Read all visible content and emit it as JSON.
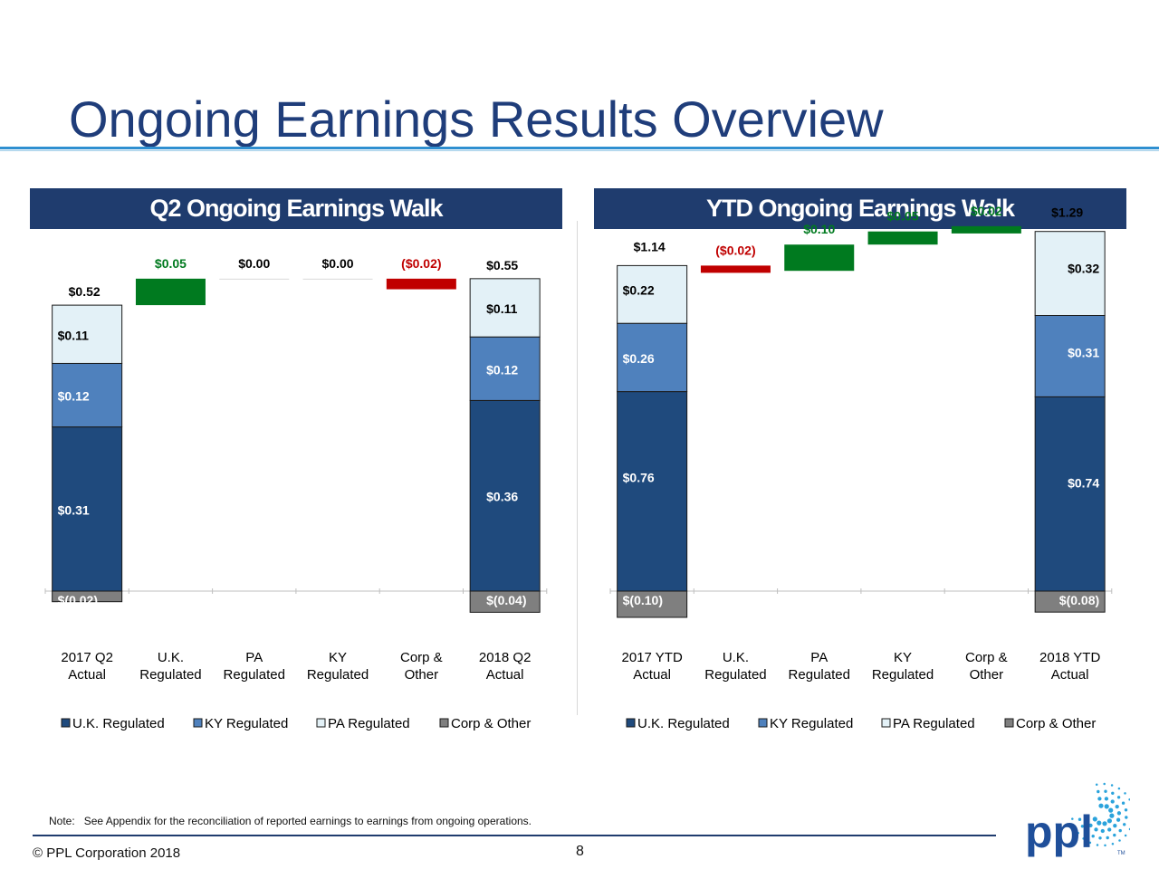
{
  "title": "Ongoing Earnings Results Overview",
  "note_label": "Note:",
  "note_text": "See Appendix for the reconciliation of reported earnings to earnings from ongoing operations.",
  "copyright": "© PPL Corporation 2018",
  "page_number": "8",
  "logo": {
    "icon": "ppl-logo-sunburst",
    "text": "ppl",
    "tm": "TM"
  },
  "colors": {
    "header_bg": "#1f3c6e",
    "title": "#1f3d7a",
    "uk": "#1f4a7d",
    "ky": "#4f81bd",
    "pa": "#e3f1f7",
    "corp": "#7f7f7f",
    "positive": "#007a1f",
    "negative": "#c00000"
  },
  "chart_data": [
    {
      "type": "bar",
      "subtype": "waterfall",
      "title": "Q2 Ongoing Earnings Walk",
      "categories": [
        [
          "2017 Q2",
          "Actual"
        ],
        [
          "U.K.",
          "Regulated"
        ],
        [
          "PA",
          "Regulated"
        ],
        [
          "KY",
          "Regulated"
        ],
        [
          "Corp &",
          "Other"
        ],
        [
          "2018 Q2",
          "Actual"
        ]
      ],
      "totals": [
        {
          "index": 0,
          "total_label": "$0.52",
          "segments": [
            {
              "series": "Corp & Other",
              "value": -0.02,
              "label": "$(0.02)"
            },
            {
              "series": "U.K. Regulated",
              "value": 0.31,
              "label": "$0.31"
            },
            {
              "series": "KY Regulated",
              "value": 0.12,
              "label": "$0.12"
            },
            {
              "series": "PA Regulated",
              "value": 0.11,
              "label": "$0.11"
            }
          ]
        },
        {
          "index": 5,
          "total_label": "$0.55",
          "segments": [
            {
              "series": "Corp & Other",
              "value": -0.04,
              "label": "$(0.04)"
            },
            {
              "series": "U.K. Regulated",
              "value": 0.36,
              "label": "$0.36"
            },
            {
              "series": "KY Regulated",
              "value": 0.12,
              "label": "$0.12"
            },
            {
              "series": "PA Regulated",
              "value": 0.11,
              "label": "$0.11"
            }
          ]
        }
      ],
      "changes": [
        {
          "index": 1,
          "value": 0.05,
          "label": "$0.05"
        },
        {
          "index": 2,
          "value": 0.0,
          "label": "$0.00"
        },
        {
          "index": 3,
          "value": 0.0,
          "label": "$0.00"
        },
        {
          "index": 4,
          "value": -0.02,
          "label": "($0.02)"
        }
      ],
      "legend": [
        "U.K. Regulated",
        "KY Regulated",
        "PA Regulated",
        "Corp & Other"
      ],
      "legend_position": "bottom"
    },
    {
      "type": "bar",
      "subtype": "waterfall",
      "title": "YTD Ongoing Earnings Walk",
      "categories": [
        [
          "2017 YTD",
          "Actual"
        ],
        [
          "U.K.",
          "Regulated"
        ],
        [
          "PA",
          "Regulated"
        ],
        [
          "KY",
          "Regulated"
        ],
        [
          "Corp &",
          "Other"
        ],
        [
          "2018 YTD",
          "Actual"
        ]
      ],
      "totals": [
        {
          "index": 0,
          "total_label": "$1.14",
          "segments": [
            {
              "series": "Corp & Other",
              "value": -0.1,
              "label": "$(0.10)"
            },
            {
              "series": "U.K. Regulated",
              "value": 0.76,
              "label": "$0.76"
            },
            {
              "series": "KY Regulated",
              "value": 0.26,
              "label": "$0.26"
            },
            {
              "series": "PA Regulated",
              "value": 0.22,
              "label": "$0.22"
            }
          ]
        },
        {
          "index": 5,
          "total_label": "$1.29",
          "segments": [
            {
              "series": "Corp & Other",
              "value": -0.08,
              "label": "$(0.08)"
            },
            {
              "series": "U.K. Regulated",
              "value": 0.74,
              "label": "$0.74"
            },
            {
              "series": "KY Regulated",
              "value": 0.31,
              "label": "$0.31"
            },
            {
              "series": "PA Regulated",
              "value": 0.32,
              "label": "$0.32"
            }
          ]
        }
      ],
      "changes": [
        {
          "index": 1,
          "value": -0.02,
          "label": "($0.02)"
        },
        {
          "index": 2,
          "value": 0.1,
          "label": "$0.10"
        },
        {
          "index": 3,
          "value": 0.05,
          "label": "$0.05"
        },
        {
          "index": 4,
          "value": 0.02,
          "label": "$0.02"
        }
      ],
      "legend": [
        "U.K. Regulated",
        "KY Regulated",
        "PA Regulated",
        "Corp & Other"
      ],
      "legend_position": "bottom"
    }
  ]
}
